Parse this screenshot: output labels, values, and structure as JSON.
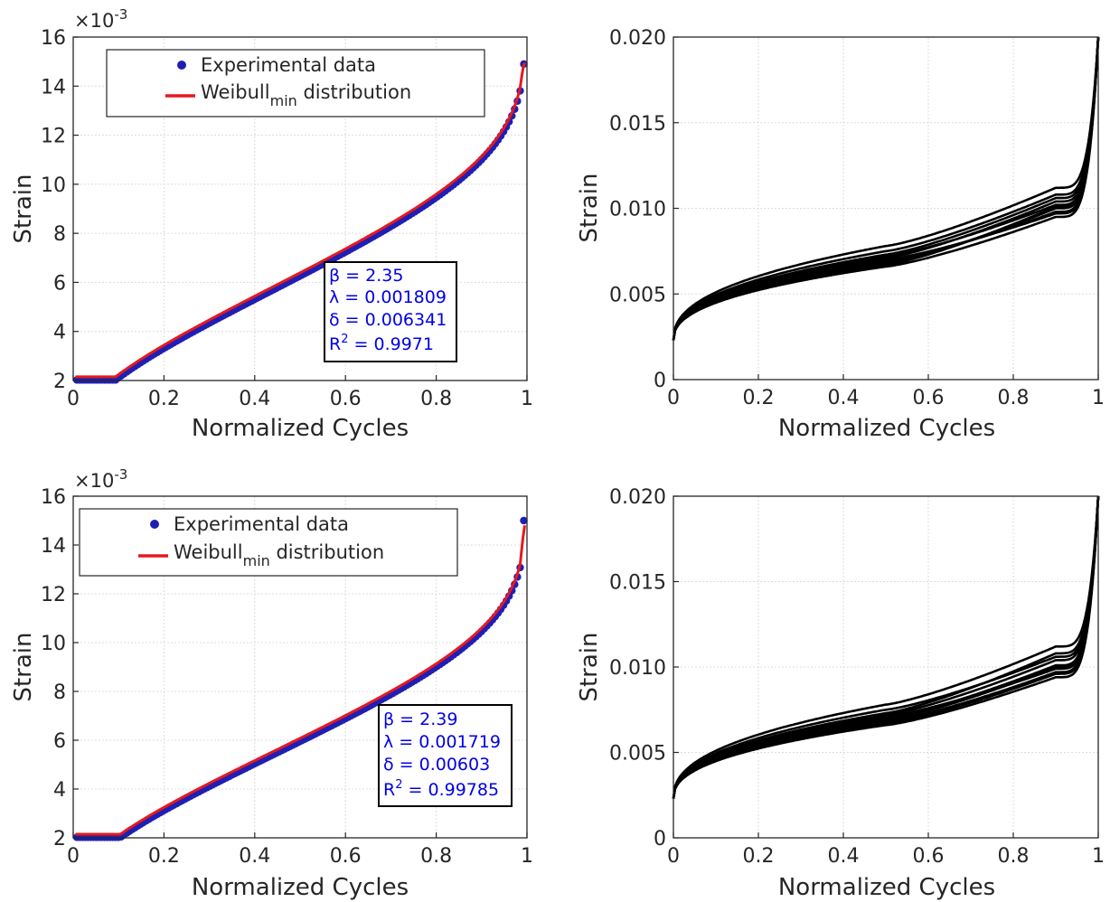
{
  "chart_data": [
    {
      "type": "scatter",
      "xlabel": "Normalized Cycles",
      "ylabel": "Strain",
      "xlim": [
        0,
        1
      ],
      "ylim": [
        2,
        16
      ],
      "xticks": [
        "0",
        "0.2",
        "0.4",
        "0.6",
        "0.8",
        "1"
      ],
      "yticks": [
        "2",
        "4",
        "6",
        "8",
        "10",
        "12",
        "14",
        "16"
      ],
      "exponent_label": "×10",
      "exponent_power": "-3",
      "grid": true,
      "legend": {
        "placement": "top-left",
        "entries": [
          {
            "label": "Experimental data",
            "marker": "dot",
            "color": "#1f1fb4"
          },
          {
            "label": "Weibull",
            "subscript": "min",
            "suffix": " distribution",
            "marker": "line",
            "color": "#e6191f"
          }
        ]
      },
      "params": {
        "beta_line": "β = 2.35",
        "lambda_line": "λ = 0.001809",
        "delta_line": "δ = 0.006341",
        "r2_base": "R",
        "r2_sup": "2",
        "r2_rest": " = 0.9971"
      },
      "model": {
        "beta": 2.35,
        "lambda": 0.001809,
        "delta": 0.006341,
        "y_start": 2.35,
        "y_end": 14.9
      },
      "series": [
        {
          "name": "Experimental data",
          "kind": "scatter",
          "color": "#1f1fb4"
        },
        {
          "name": "Weibull min distribution",
          "kind": "line",
          "color": "#e6191f"
        }
      ]
    },
    {
      "type": "line",
      "xlabel": "Normalized Cycles",
      "ylabel": "Strain",
      "xlim": [
        0,
        1
      ],
      "ylim": [
        0,
        0.02
      ],
      "xticks": [
        "0",
        "0.2",
        "0.4",
        "0.6",
        "0.8",
        "1"
      ],
      "yticks": [
        "0",
        "0.005",
        "0.010",
        "0.015",
        "0.020"
      ],
      "grid": true,
      "line_color": "#000000",
      "curves": [
        {
          "start": 0.0023,
          "y50": 0.0078,
          "y90": 0.0112,
          "end": 0.02
        },
        {
          "start": 0.0023,
          "y50": 0.0072,
          "y90": 0.0102,
          "end": 0.02
        },
        {
          "start": 0.0023,
          "y50": 0.0069,
          "y90": 0.0098,
          "end": 0.02
        },
        {
          "start": 0.0023,
          "y50": 0.0075,
          "y90": 0.0108,
          "end": 0.02
        },
        {
          "start": 0.0023,
          "y50": 0.0066,
          "y90": 0.0095,
          "end": 0.02
        },
        {
          "start": 0.0023,
          "y50": 0.0071,
          "y90": 0.0104,
          "end": 0.02
        },
        {
          "start": 0.0023,
          "y50": 0.0068,
          "y90": 0.01,
          "end": 0.02
        },
        {
          "start": 0.0023,
          "y50": 0.0073,
          "y90": 0.0106,
          "end": 0.02
        },
        {
          "start": 0.0023,
          "y50": 0.007,
          "y90": 0.0097,
          "end": 0.02
        },
        {
          "start": 0.0023,
          "y50": 0.0067,
          "y90": 0.0101,
          "end": 0.02
        }
      ]
    },
    {
      "type": "scatter",
      "xlabel": "Normalized Cycles",
      "ylabel": "Strain",
      "xlim": [
        0,
        1
      ],
      "ylim": [
        2,
        16
      ],
      "xticks": [
        "0",
        "0.2",
        "0.4",
        "0.6",
        "0.8",
        "1"
      ],
      "yticks": [
        "2",
        "4",
        "6",
        "8",
        "10",
        "12",
        "14",
        "16"
      ],
      "exponent_label": "×10",
      "exponent_power": "-3",
      "grid": true,
      "legend": {
        "placement": "top-left",
        "entries": [
          {
            "label": "Experimental data",
            "marker": "dot",
            "color": "#1f1fb4"
          },
          {
            "label": "Weibull",
            "subscript": "min",
            "suffix": " distribution",
            "marker": "line",
            "color": "#e6191f"
          }
        ]
      },
      "params": {
        "beta_line": "β = 2.39",
        "lambda_line": "λ = 0.001719",
        "delta_line": "δ = 0.00603",
        "r2_base": "R",
        "r2_sup": "2",
        "r2_rest": " = 0.99785"
      },
      "model": {
        "beta": 2.39,
        "lambda": 0.001719,
        "delta": 0.00603,
        "y_start": 2.3,
        "y_end": 15.0
      },
      "series": [
        {
          "name": "Experimental data",
          "kind": "scatter",
          "color": "#1f1fb4"
        },
        {
          "name": "Weibull min distribution",
          "kind": "line",
          "color": "#e6191f"
        }
      ]
    },
    {
      "type": "line",
      "xlabel": "Normalized Cycles",
      "ylabel": "Strain",
      "xlim": [
        0,
        1
      ],
      "ylim": [
        0,
        0.02
      ],
      "xticks": [
        "0",
        "0.2",
        "0.4",
        "0.6",
        "0.8",
        "1"
      ],
      "yticks": [
        "0",
        "0.005",
        "0.010",
        "0.015",
        "0.020"
      ],
      "grid": true,
      "line_color": "#000000",
      "curves": [
        {
          "start": 0.0023,
          "y50": 0.0078,
          "y90": 0.0112,
          "end": 0.02
        },
        {
          "start": 0.0023,
          "y50": 0.0075,
          "y90": 0.0106,
          "end": 0.02
        },
        {
          "start": 0.0023,
          "y50": 0.0072,
          "y90": 0.0104,
          "end": 0.02
        },
        {
          "start": 0.0023,
          "y50": 0.007,
          "y90": 0.0101,
          "end": 0.02
        },
        {
          "start": 0.0023,
          "y50": 0.0068,
          "y90": 0.0097,
          "end": 0.02
        },
        {
          "start": 0.0023,
          "y50": 0.0066,
          "y90": 0.0094,
          "end": 0.02
        },
        {
          "start": 0.0023,
          "y50": 0.0073,
          "y90": 0.0108,
          "end": 0.02
        },
        {
          "start": 0.0023,
          "y50": 0.0069,
          "y90": 0.01,
          "end": 0.02
        },
        {
          "start": 0.0023,
          "y50": 0.0071,
          "y90": 0.0099,
          "end": 0.02
        },
        {
          "start": 0.0023,
          "y50": 0.0067,
          "y90": 0.0096,
          "end": 0.02
        }
      ]
    }
  ]
}
